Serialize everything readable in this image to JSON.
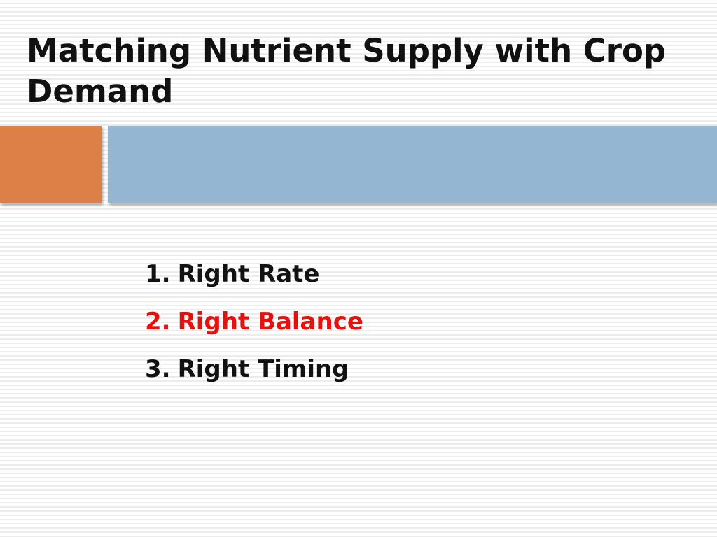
{
  "slide": {
    "title": "Matching Nutrient Supply with Crop Demand",
    "items": [
      {
        "number": "1.",
        "text": "Right Rate"
      },
      {
        "number": "2.",
        "text": "Right Balance"
      },
      {
        "number": "3.",
        "text": "Right Timing"
      }
    ]
  }
}
